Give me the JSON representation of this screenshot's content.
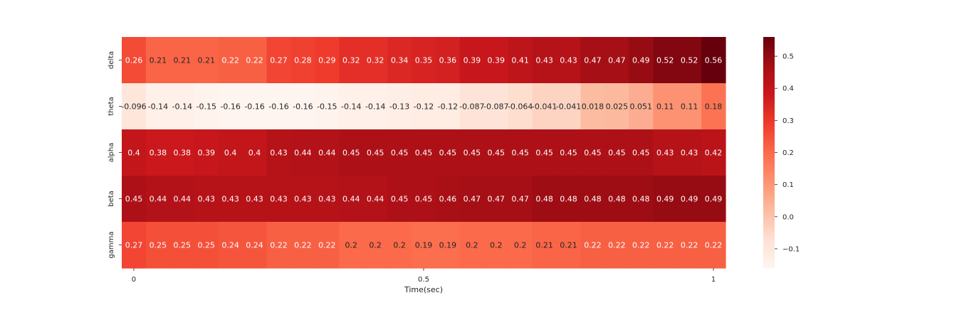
{
  "chart_data": {
    "type": "heatmap",
    "title": "",
    "xlabel": "Time(sec)",
    "ylabel": "",
    "rows": [
      "delta",
      "theta",
      "alpha",
      "beta",
      "gamma"
    ],
    "x_tick_labels": [
      "0",
      "0.5",
      "1"
    ],
    "x_range": [
      0,
      1
    ],
    "values": [
      [
        "0.26",
        "0.21",
        "0.21",
        "0.21",
        "0.22",
        "0.22",
        "0.27",
        "0.28",
        "0.29",
        "0.32",
        "0.32",
        "0.34",
        "0.35",
        "0.36",
        "0.39",
        "0.39",
        "0.41",
        "0.43",
        "0.43",
        "0.47",
        "0.47",
        "0.49",
        "0.52",
        "0.52",
        "0.56"
      ],
      [
        "-0.096",
        "-0.14",
        "-0.14",
        "-0.15",
        "-0.16",
        "-0.16",
        "-0.16",
        "-0.16",
        "-0.15",
        "-0.14",
        "-0.14",
        "-0.13",
        "-0.12",
        "-0.12",
        "-0.087",
        "-0.087",
        "-0.064",
        "-0.041",
        "-0.041",
        "0.018",
        "0.025",
        "0.051",
        "0.11",
        "0.11",
        "0.18"
      ],
      [
        "0.4",
        "0.38",
        "0.38",
        "0.39",
        "0.4",
        "0.4",
        "0.43",
        "0.44",
        "0.44",
        "0.45",
        "0.45",
        "0.45",
        "0.45",
        "0.45",
        "0.45",
        "0.45",
        "0.45",
        "0.45",
        "0.45",
        "0.45",
        "0.45",
        "0.45",
        "0.43",
        "0.43",
        "0.42"
      ],
      [
        "0.45",
        "0.44",
        "0.44",
        "0.43",
        "0.43",
        "0.43",
        "0.43",
        "0.43",
        "0.43",
        "0.44",
        "0.44",
        "0.45",
        "0.45",
        "0.46",
        "0.47",
        "0.47",
        "0.47",
        "0.48",
        "0.48",
        "0.48",
        "0.48",
        "0.48",
        "0.49",
        "0.49",
        "0.49"
      ],
      [
        "0.27",
        "0.25",
        "0.25",
        "0.25",
        "0.24",
        "0.24",
        "0.22",
        "0.22",
        "0.22",
        "0.2",
        "0.2",
        "0.2",
        "0.19",
        "0.19",
        "0.2",
        "0.2",
        "0.2",
        "0.21",
        "0.21",
        "0.22",
        "0.22",
        "0.22",
        "0.22",
        "0.22",
        "0.22"
      ]
    ],
    "colormap": "Reds",
    "color_range": [
      -0.16,
      0.56
    ],
    "colorbar_ticks": [
      "0.5",
      "0.4",
      "0.3",
      "0.2",
      "0.1",
      "0.0",
      "−0.1"
    ],
    "colorbar_tick_values": [
      0.5,
      0.4,
      0.3,
      0.2,
      0.1,
      0.0,
      -0.1
    ],
    "annotations": true,
    "grid": false,
    "legend": "colorbar-right"
  }
}
